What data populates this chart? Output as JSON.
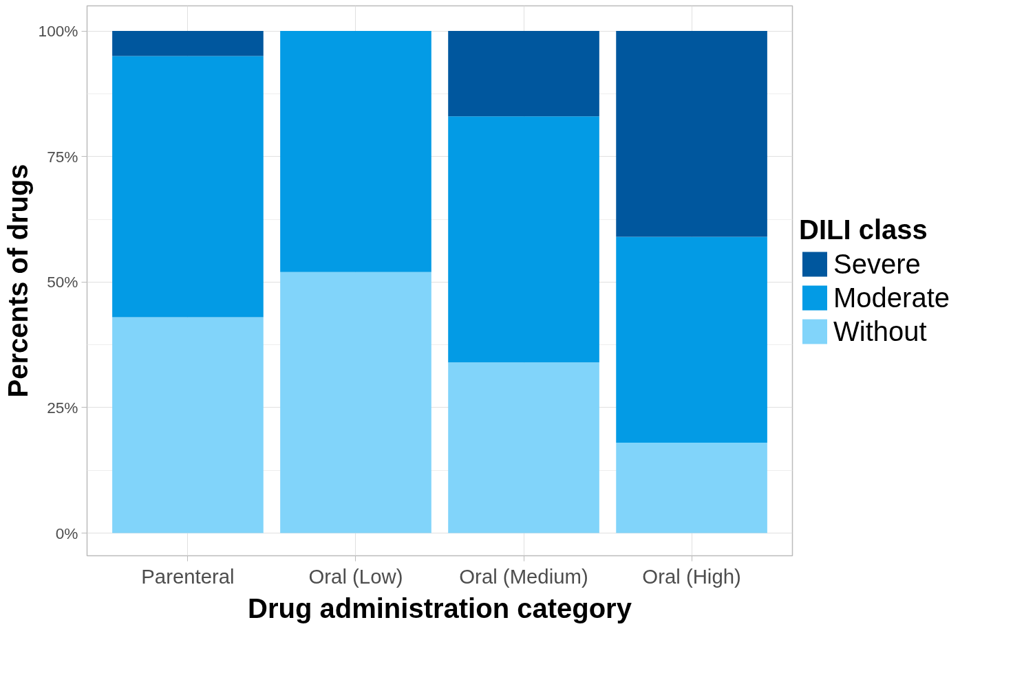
{
  "chart_data": {
    "type": "bar",
    "stacked": true,
    "xlabel": "Drug administration category",
    "ylabel": "Percents of drugs",
    "legend_title": "DILI class",
    "categories": [
      "Parenteral",
      "Oral (Low)",
      "Oral (Medium)",
      "Oral (High)"
    ],
    "series": [
      {
        "name": "Without",
        "color": "#81d4fa",
        "values": [
          43,
          52,
          34,
          18
        ]
      },
      {
        "name": "Moderate",
        "color": "#039be5",
        "values": [
          52,
          48,
          49,
          41
        ]
      },
      {
        "name": "Severe",
        "color": "#00579e",
        "values": [
          5,
          0,
          17,
          41
        ]
      }
    ],
    "ylim": [
      -4.5,
      105
    ],
    "yticks": [
      {
        "value": 0,
        "label": "0%"
      },
      {
        "value": 25,
        "label": "25%"
      },
      {
        "value": 50,
        "label": "50%"
      },
      {
        "value": 75,
        "label": "75%"
      },
      {
        "value": 100,
        "label": "100%"
      }
    ],
    "grid": true,
    "legend": "right"
  }
}
